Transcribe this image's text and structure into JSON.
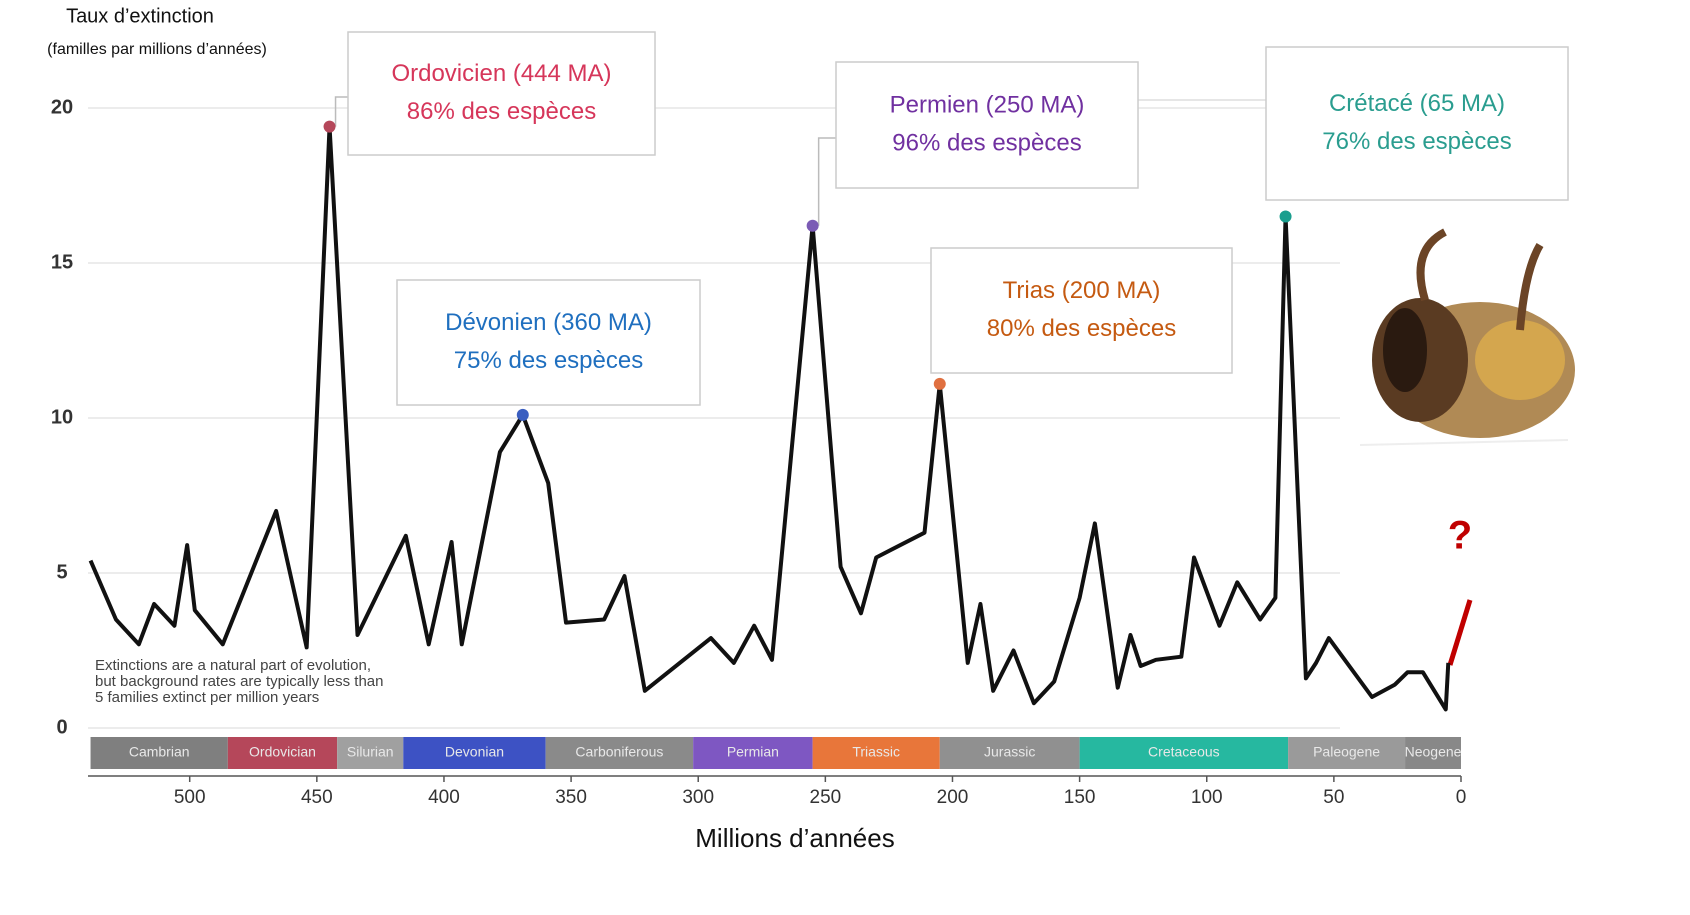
{
  "chart_data": {
    "type": "line",
    "y_label": "Taux d’extinction",
    "y_sublabel": "(familles par millions d’années)",
    "x_label": "Millions d’années",
    "note": [
      "Extinctions are a natural part of evolution,",
      "but background rates are typically less than",
      "5 families extinct per million years"
    ],
    "marker": "?",
    "xlim": [
      540,
      0
    ],
    "ylim": [
      0,
      20
    ],
    "xticks": [
      500,
      450,
      400,
      350,
      300,
      250,
      200,
      150,
      100,
      50,
      0
    ],
    "yticks": [
      0,
      5,
      10,
      15,
      20
    ],
    "grid": true,
    "series": [
      {
        "color": "#111111",
        "x": [
          539,
          529,
          520,
          514,
          506,
          501,
          498,
          487,
          466,
          454,
          445,
          434,
          415,
          406,
          397,
          393,
          378,
          369,
          359,
          352,
          337,
          329,
          321,
          295,
          286,
          278,
          271,
          255,
          244,
          236,
          230,
          211,
          205,
          194,
          189,
          184,
          176,
          168,
          160,
          150,
          144,
          135,
          130,
          126,
          120,
          110,
          105,
          95,
          88,
          79,
          73,
          69,
          61,
          57,
          52,
          35,
          26,
          21,
          15,
          6,
          5
        ],
        "values": [
          5.4,
          3.5,
          2.7,
          4.0,
          3.3,
          5.9,
          3.8,
          2.7,
          7.0,
          2.6,
          19.4,
          3.0,
          6.2,
          2.7,
          6.0,
          2.7,
          8.9,
          10.1,
          7.9,
          3.4,
          3.5,
          4.9,
          1.2,
          2.9,
          2.1,
          3.3,
          2.2,
          16.2,
          5.2,
          3.7,
          5.5,
          6.3,
          11.1,
          2.1,
          4.0,
          1.2,
          2.5,
          0.8,
          1.5,
          4.2,
          6.6,
          1.3,
          3.0,
          2.0,
          2.2,
          2.3,
          5.5,
          3.3,
          4.7,
          3.5,
          4.2,
          16.5,
          1.6,
          2.1,
          2.9,
          1.0,
          1.4,
          1.8,
          1.8,
          0.6,
          2.1
        ]
      }
    ],
    "annotations": [
      {
        "lines": [
          "Ordovicien (444 MA)",
          "86% des espèces"
        ],
        "color": "#d6365a",
        "dot_color": "#b5475a",
        "x": 445,
        "y": 19.4
      },
      {
        "lines": [
          "Dévonien (360 MA)",
          "75% des espèces"
        ],
        "color": "#1f6fbf",
        "dot_color": "#3a5ec0",
        "x": 369,
        "y": 10.1
      },
      {
        "lines": [
          "Permien (250 MA)",
          "96% des espèces"
        ],
        "color": "#7030a0",
        "dot_color": "#7b5bb5",
        "x": 255,
        "y": 16.2
      },
      {
        "lines": [
          "Trias (200 MA)",
          "80% des espèces"
        ],
        "color": "#c55a11",
        "dot_color": "#e07040",
        "x": 205,
        "y": 11.1
      },
      {
        "lines": [
          "Crétacé (65 MA)",
          "76% des espèces"
        ],
        "color": "#2a9d8f",
        "dot_color": "#1a9e8e",
        "x": 69,
        "y": 16.5
      }
    ],
    "periods": [
      {
        "name": "Cambrian",
        "start": 539,
        "end": 485,
        "color": "#7f7f7f"
      },
      {
        "name": "Ordovician",
        "start": 485,
        "end": 442,
        "color": "#b5475a"
      },
      {
        "name": "Silurian",
        "start": 442,
        "end": 416,
        "color": "#a0a0a0"
      },
      {
        "name": "Devonian",
        "start": 416,
        "end": 360,
        "color": "#3d52c4"
      },
      {
        "name": "Carboniferous",
        "start": 360,
        "end": 302,
        "color": "#8a8a8a"
      },
      {
        "name": "Permian",
        "start": 302,
        "end": 255,
        "color": "#7e57c2"
      },
      {
        "name": "Triassic",
        "start": 255,
        "end": 205,
        "color": "#e8763a"
      },
      {
        "name": "Jurassic",
        "start": 205,
        "end": 150,
        "color": "#909090"
      },
      {
        "name": "Cretaceous",
        "start": 150,
        "end": 68,
        "color": "#26b8a0"
      },
      {
        "name": "Paleogene",
        "start": 68,
        "end": 22,
        "color": "#9a9a9a"
      },
      {
        "name": "Neogene",
        "start": 22,
        "end": 0,
        "color": "#888888"
      }
    ]
  }
}
